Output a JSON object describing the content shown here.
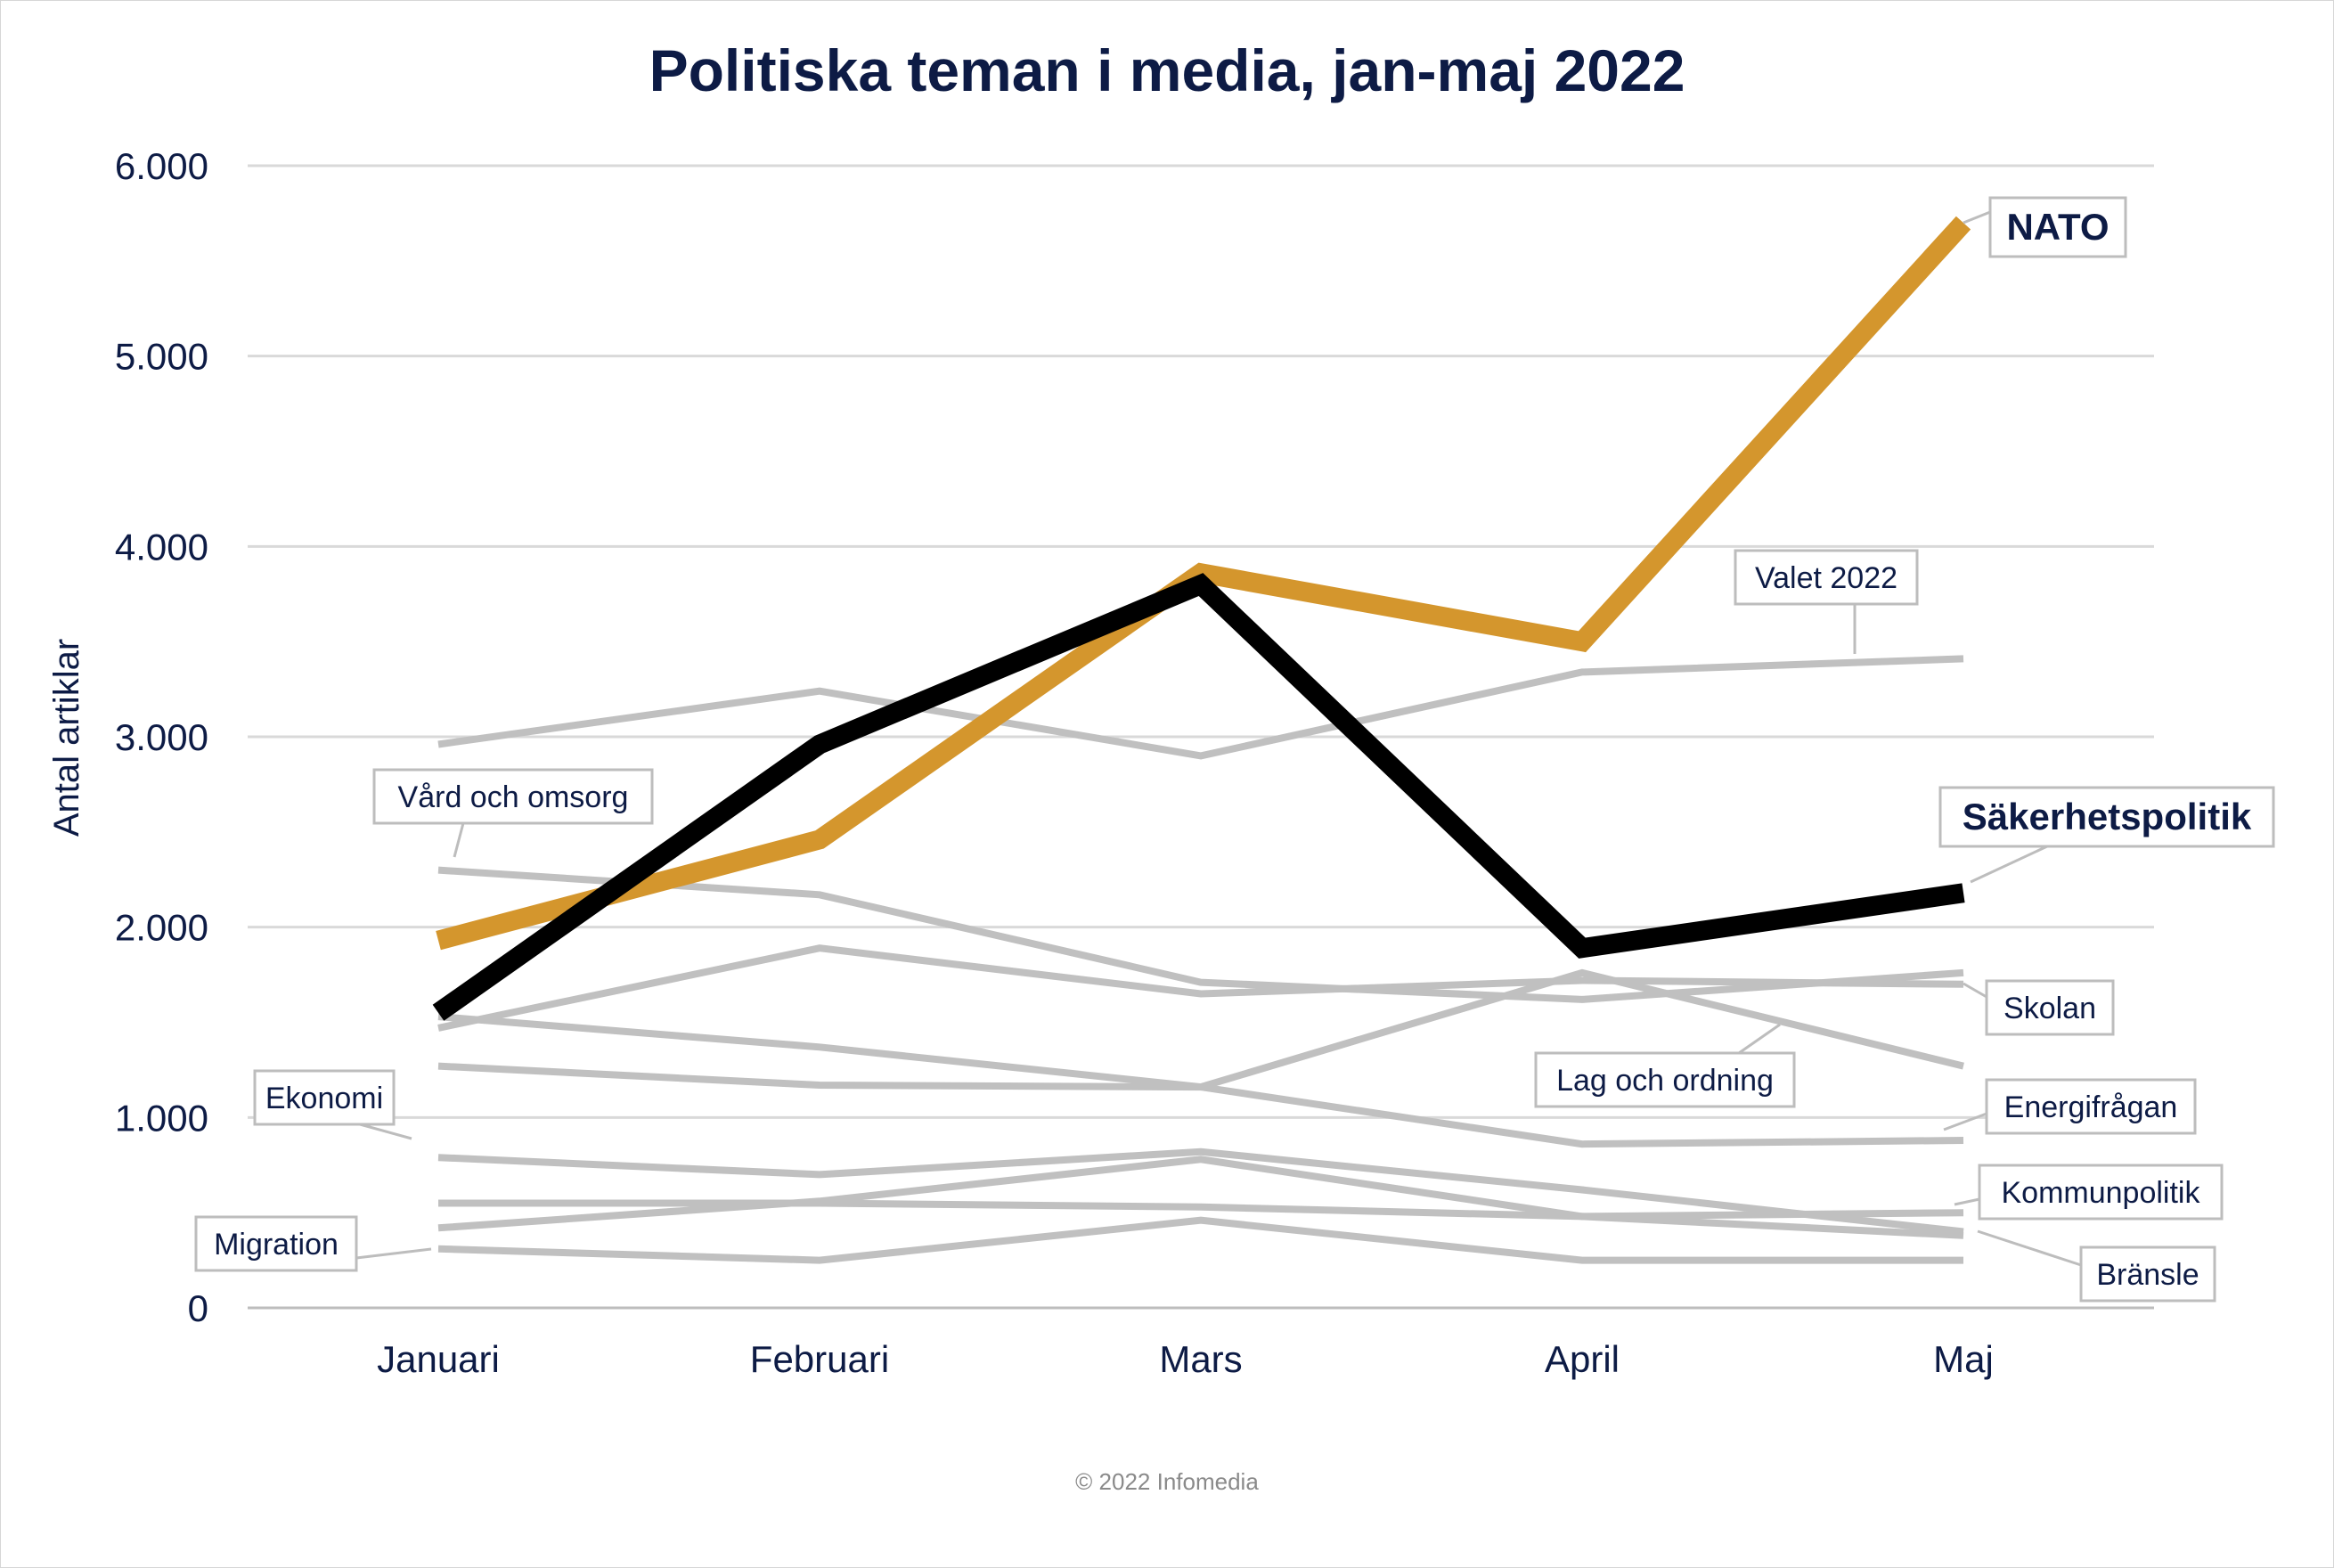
{
  "chart_data": {
    "type": "line",
    "title": "Politiska teman i media, jan-maj 2022",
    "ylabel": "Antal artiklar",
    "xlabel": "",
    "categories": [
      "Januari",
      "Februari",
      "Mars",
      "April",
      "Maj"
    ],
    "ylim": [
      0,
      6000
    ],
    "yticks": [
      0,
      1000,
      2000,
      3000,
      4000,
      5000,
      6000
    ],
    "ytick_labels": [
      "0",
      "1.000",
      "2.000",
      "3.000",
      "4.000",
      "5.000",
      "6.000"
    ],
    "grid": true,
    "series": [
      {
        "name": "Valet 2022",
        "values": [
          2960,
          3240,
          2900,
          3340,
          3410
        ],
        "color": "#c0c0c0",
        "emphasis": false
      },
      {
        "name": "Vård och omsorg",
        "values": [
          2300,
          2170,
          1710,
          1620,
          1760
        ],
        "color": "#c0c0c0",
        "emphasis": false
      },
      {
        "name": "Skolan",
        "values": [
          1470,
          1890,
          1650,
          1720,
          1700
        ],
        "color": "#c0c0c0",
        "emphasis": false
      },
      {
        "name": "Lag och ordning",
        "values": [
          1530,
          1370,
          1160,
          1760,
          1270
        ],
        "color": "#c0c0c0",
        "emphasis": false
      },
      {
        "name": "Energifrågan",
        "values": [
          1270,
          1170,
          1160,
          860,
          880
        ],
        "color": "#c0c0c0",
        "emphasis": false
      },
      {
        "name": "Ekonomi",
        "values": [
          790,
          700,
          820,
          620,
          400
        ],
        "color": "#c0c0c0",
        "emphasis": false
      },
      {
        "name": "Kommunpolitik",
        "values": [
          550,
          550,
          530,
          480,
          500
        ],
        "color": "#c0c0c0",
        "emphasis": false
      },
      {
        "name": "Bränsle",
        "values": [
          420,
          560,
          780,
          480,
          380
        ],
        "color": "#c0c0c0",
        "emphasis": false
      },
      {
        "name": "Migration",
        "values": [
          310,
          250,
          460,
          250,
          250
        ],
        "color": "#c0c0c0",
        "emphasis": false
      },
      {
        "name": "NATO",
        "values": [
          1930,
          2460,
          3860,
          3500,
          5700
        ],
        "color": "#d4962d",
        "emphasis": true
      },
      {
        "name": "Säkerhetspolitik",
        "values": [
          1550,
          2960,
          3800,
          1890,
          2180
        ],
        "color": "#000000",
        "emphasis": true
      }
    ],
    "copyright": "© 2022 Infomedia"
  }
}
